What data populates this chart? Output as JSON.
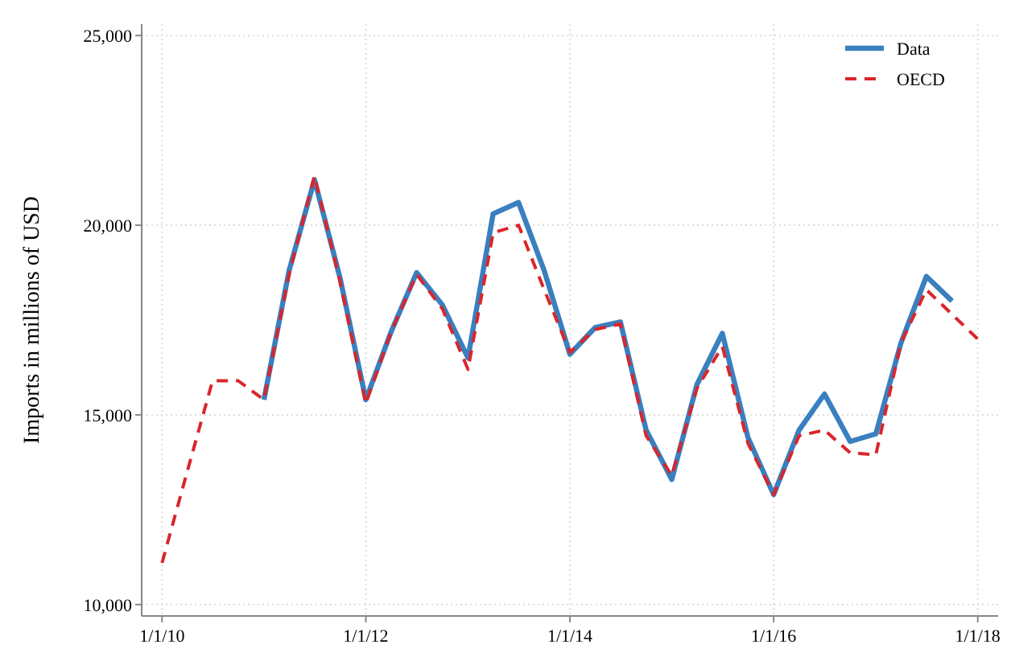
{
  "chart_data": {
    "type": "line",
    "ylabel": "Imports in millions of USD",
    "x": [
      "2010-01",
      "2010-04",
      "2010-07",
      "2010-10",
      "2011-01",
      "2011-04",
      "2011-07",
      "2011-10",
      "2012-01",
      "2012-04",
      "2012-07",
      "2012-10",
      "2013-01",
      "2013-04",
      "2013-07",
      "2013-10",
      "2014-01",
      "2014-04",
      "2014-07",
      "2014-10",
      "2015-01",
      "2015-04",
      "2015-07",
      "2015-10",
      "2016-01",
      "2016-04",
      "2016-07",
      "2016-10",
      "2017-01",
      "2017-04",
      "2017-07",
      "2017-10",
      "2018-01"
    ],
    "series": [
      {
        "name": "Data",
        "color": "#3a7fbf",
        "line_style": "solid",
        "values": [
          null,
          null,
          null,
          null,
          15400,
          18800,
          21200,
          18600,
          15400,
          17200,
          18750,
          17900,
          16500,
          20300,
          20600,
          18800,
          16600,
          17300,
          17450,
          14600,
          13300,
          15800,
          17150,
          14400,
          12900,
          14600,
          15550,
          14300,
          14500,
          16900,
          18650,
          18000,
          null
        ]
      },
      {
        "name": "OECD",
        "color": "#d9262b",
        "line_style": "dashed",
        "values": [
          11100,
          13500,
          15900,
          15900,
          15400,
          18700,
          21300,
          18500,
          15300,
          17200,
          18700,
          17800,
          16200,
          19800,
          20000,
          18300,
          16650,
          17250,
          17400,
          14450,
          13400,
          15700,
          16800,
          14250,
          12900,
          14450,
          14600,
          14000,
          13950,
          16900,
          18300,
          17650,
          17000
        ]
      }
    ],
    "xlim": [
      "2009-10-20",
      "2018-03-15"
    ],
    "xticks": [
      {
        "value": "2010-01-01",
        "label": "1/1/10"
      },
      {
        "value": "2012-01-01",
        "label": "1/1/12"
      },
      {
        "value": "2014-01-01",
        "label": "1/1/14"
      },
      {
        "value": "2016-01-01",
        "label": "1/1/16"
      },
      {
        "value": "2018-01-01",
        "label": "1/1/18"
      }
    ],
    "ylim": [
      9700,
      25300
    ],
    "yticks": [
      {
        "value": 10000,
        "label": "10,000"
      },
      {
        "value": 15000,
        "label": "15,000"
      },
      {
        "value": 20000,
        "label": "20,000"
      },
      {
        "value": 25000,
        "label": "25,000"
      }
    ],
    "grid": true,
    "legend": "top right"
  }
}
